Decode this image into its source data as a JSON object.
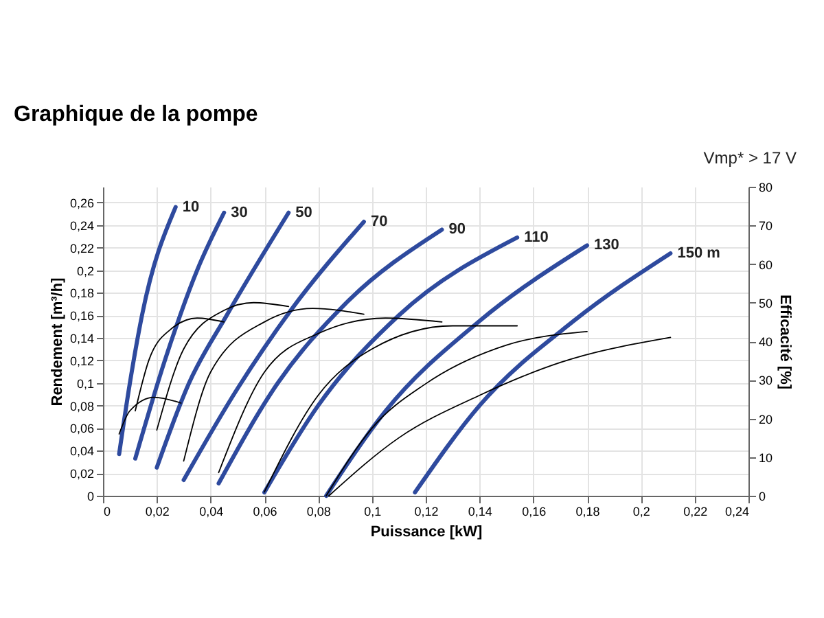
{
  "chart_data": {
    "type": "line",
    "title": "Graphique de la pompe",
    "xlabel": "Puissance [kW]",
    "ylabel": "Rendement [m³/h]",
    "y2label": "Efficacité [%]",
    "annotations": [
      "Vmp* > 17 V"
    ],
    "xlim": [
      0,
      0.24
    ],
    "ylim": [
      0,
      0.274
    ],
    "y2lim": [
      0,
      80
    ],
    "xticks": [
      0,
      {
        "value": 0.02,
        "label": "0,02"
      },
      {
        "value": 0.04,
        "label": "0,04"
      },
      {
        "value": 0.06,
        "label": "0,06"
      },
      {
        "value": 0.08,
        "label": "0,08"
      },
      {
        "value": 0.1,
        "label": "0,1"
      },
      {
        "value": 0.12,
        "label": "0,12"
      },
      {
        "value": 0.14,
        "label": "0,14"
      },
      {
        "value": 0.16,
        "label": "0,16"
      },
      {
        "value": 0.18,
        "label": "0,18"
      },
      {
        "value": 0.2,
        "label": "0,2"
      },
      {
        "value": 0.22,
        "label": "0,22"
      },
      {
        "value": 0.24,
        "label": "0,24"
      }
    ],
    "yticks": [
      0,
      {
        "value": 0.02,
        "label": "0,02"
      },
      {
        "value": 0.04,
        "label": "0,04"
      },
      {
        "value": 0.06,
        "label": "0,06"
      },
      {
        "value": 0.08,
        "label": "0,08"
      },
      {
        "value": 0.1,
        "label": "0,1"
      },
      {
        "value": 0.12,
        "label": "0,12"
      },
      {
        "value": 0.14,
        "label": "0,14"
      },
      {
        "value": 0.16,
        "label": "0,16"
      },
      {
        "value": 0.18,
        "label": "0,18"
      },
      {
        "value": 0.2,
        "label": "0,2"
      },
      {
        "value": 0.22,
        "label": "0,22"
      },
      {
        "value": 0.24,
        "label": "0,24"
      },
      {
        "value": 0.26,
        "label": "0,26"
      }
    ],
    "y2ticks": [
      0,
      10,
      20,
      30,
      40,
      50,
      60,
      70,
      80
    ],
    "grid": true,
    "marker": "none",
    "line_style": "solid",
    "series": [
      {
        "name": "10",
        "color": "#2e4a9e",
        "x": [
          0.006,
          0.01,
          0.0145,
          0.027
        ],
        "values": [
          0.037,
          0.1,
          0.16,
          0.256
        ]
      },
      {
        "name": "30",
        "color": "#2e4a9e",
        "x": [
          0.012,
          0.023,
          0.035,
          0.045
        ],
        "values": [
          0.033,
          0.12,
          0.2,
          0.251
        ]
      },
      {
        "name": "50",
        "color": "#2e4a9e",
        "x": [
          0.02,
          0.032,
          0.046,
          0.069
        ],
        "values": [
          0.025,
          0.1,
          0.16,
          0.251
        ]
      },
      {
        "name": "70",
        "color": "#2e4a9e",
        "x": [
          0.03,
          0.05,
          0.07,
          0.097
        ],
        "values": [
          0.014,
          0.095,
          0.165,
          0.243
        ]
      },
      {
        "name": "90",
        "color": "#2e4a9e",
        "x": [
          0.043,
          0.065,
          0.09,
          0.126
        ],
        "values": [
          0.011,
          0.1,
          0.17,
          0.236
        ]
      },
      {
        "name": "110",
        "color": "#2e4a9e",
        "x": [
          0.06,
          0.08,
          0.11,
          0.154
        ],
        "values": [
          0.003,
          0.08,
          0.16,
          0.229
        ]
      },
      {
        "name": "130",
        "color": "#2e4a9e",
        "x": [
          0.083,
          0.105,
          0.14,
          0.18
        ],
        "values": [
          0.0,
          0.075,
          0.155,
          0.222
        ]
      },
      {
        "name": "150 m",
        "color": "#2e4a9e",
        "x": [
          0.116,
          0.14,
          0.175,
          0.211
        ],
        "values": [
          0.003,
          0.08,
          0.155,
          0.215
        ]
      },
      {
        "color": "#000000",
        "axis": "y2",
        "x": [
          0.006,
          0.01,
          0.019,
          0.029
        ],
        "values": [
          16,
          22,
          25.5,
          24
        ]
      },
      {
        "color": "#000000",
        "axis": "y2",
        "x": [
          0.012,
          0.017,
          0.025,
          0.035,
          0.045
        ],
        "values": [
          22,
          35,
          43,
          46,
          45
        ]
      },
      {
        "color": "#000000",
        "axis": "y2",
        "x": [
          0.02,
          0.03,
          0.045,
          0.056,
          0.069
        ],
        "values": [
          17,
          38,
          48,
          50,
          49
        ]
      },
      {
        "color": "#000000",
        "axis": "y2",
        "x": [
          0.03,
          0.04,
          0.06,
          0.078,
          0.097
        ],
        "values": [
          9,
          32,
          45,
          48.5,
          47
        ]
      },
      {
        "color": "#000000",
        "axis": "y2",
        "x": [
          0.043,
          0.06,
          0.08,
          0.105,
          0.126
        ],
        "values": [
          6,
          32,
          42,
          46,
          45
        ]
      },
      {
        "color": "#000000",
        "axis": "y2",
        "x": [
          0.06,
          0.08,
          0.1,
          0.13,
          0.154
        ],
        "values": [
          1,
          26,
          38,
          44,
          44
        ]
      },
      {
        "color": "#000000",
        "axis": "y2",
        "x": [
          0.083,
          0.1,
          0.12,
          0.15,
          0.18
        ],
        "values": [
          0,
          17.5,
          29,
          39,
          42.5
        ]
      },
      {
        "color": "#000000",
        "axis": "y2",
        "x": [
          0.084,
          0.11,
          0.14,
          0.17,
          0.211
        ],
        "values": [
          0,
          15,
          26,
          34.5,
          41
        ]
      }
    ]
  }
}
